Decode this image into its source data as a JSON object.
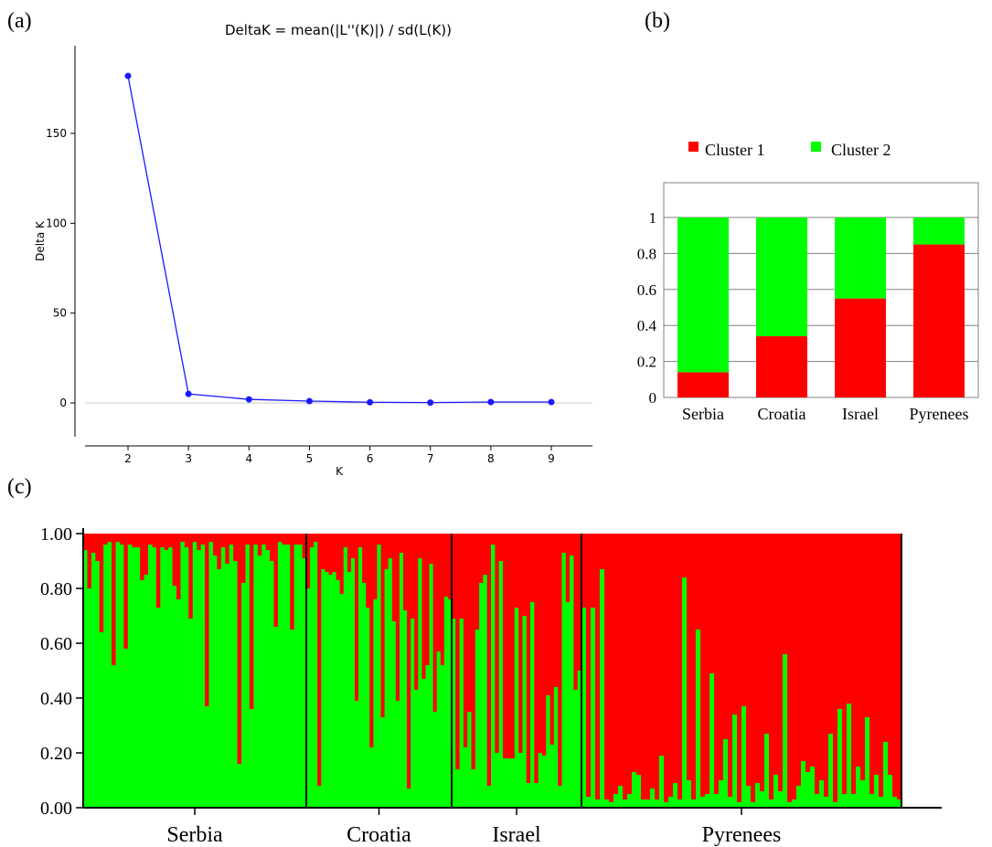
{
  "panel_labels": {
    "a": "(a)",
    "b": "(b)",
    "c": "(c)"
  },
  "colors": {
    "line": "#1a1aff",
    "cluster1": "#ff0000",
    "cluster2": "#00ff00",
    "axis": "#000000",
    "grid": "#808080"
  },
  "chart_data": [
    {
      "id": "a",
      "type": "line",
      "title": "DeltaK = mean(|L''(K)|) / sd(L(K))",
      "xlabel": "K",
      "ylabel": "Delta K",
      "x": [
        2,
        3,
        4,
        5,
        6,
        7,
        8,
        9
      ],
      "y": [
        182,
        5,
        2,
        1,
        0.4,
        0.2,
        0.5,
        0.5
      ],
      "xlim": [
        1.3,
        9.5
      ],
      "ylim": [
        -18,
        200
      ],
      "xticks": [
        "2",
        "3",
        "4",
        "5",
        "6",
        "7",
        "8",
        "9"
      ],
      "yticks": [
        "0",
        "50",
        "100",
        "150"
      ],
      "ytick_values": [
        0,
        50,
        100,
        150
      ],
      "zero_line": true
    },
    {
      "id": "b",
      "type": "bar",
      "stacked": true,
      "categories": [
        "Serbia",
        "Croatia",
        "Israel",
        "Pyrenees"
      ],
      "series": [
        {
          "name": "Cluster 1",
          "values": [
            0.14,
            0.34,
            0.55,
            0.85
          ]
        },
        {
          "name": "Cluster 2",
          "values": [
            0.86,
            0.66,
            0.45,
            0.15
          ]
        }
      ],
      "ylim": [
        0,
        1.2
      ],
      "yticks": [
        "0",
        "0.2",
        "0.4",
        "0.6",
        "0.8",
        "1"
      ],
      "ytick_values": [
        0,
        0.2,
        0.4,
        0.6,
        0.8,
        1.0
      ],
      "grid": true,
      "legend": "top"
    },
    {
      "id": "c",
      "type": "bar",
      "stacked": true,
      "ylim": [
        0,
        1
      ],
      "yticks": [
        "0.00",
        "0.20",
        "0.40",
        "0.60",
        "0.80",
        "1.00"
      ],
      "ytick_values": [
        0,
        0.2,
        0.4,
        0.6,
        0.8,
        1.0
      ],
      "groups": [
        {
          "name": "Serbia",
          "cluster2": [
            0.94,
            0.8,
            0.93,
            0.9,
            0.64,
            0.96,
            0.97,
            0.52,
            0.97,
            0.96,
            0.58,
            0.96,
            0.95,
            0.95,
            0.83,
            0.85,
            0.96,
            0.95,
            0.73,
            0.95,
            0.94,
            0.95,
            0.81,
            0.76,
            0.97,
            0.95,
            0.69,
            0.97,
            0.94,
            0.96,
            0.37,
            0.97,
            0.92,
            0.87,
            0.95,
            0.89,
            0.96,
            0.9,
            0.16,
            0.82,
            0.96,
            0.36,
            0.96,
            0.92,
            0.96,
            0.94,
            0.9,
            0.66,
            0.97,
            0.96,
            0.96,
            0.65,
            0.96,
            0.96,
            0.91
          ]
        },
        {
          "name": "Croatia",
          "cluster2": [
            0.8,
            0.95,
            0.97,
            0.08,
            0.87,
            0.86,
            0.85,
            0.86,
            0.83,
            0.78,
            0.95,
            0.86,
            0.91,
            0.39,
            0.95,
            0.82,
            0.73,
            0.22,
            0.76,
            0.96,
            0.33,
            0.87,
            0.91,
            0.68,
            0.39,
            0.93,
            0.72,
            0.07,
            0.69,
            0.43,
            0.91,
            0.47,
            0.52,
            0.89,
            0.35,
            0.57,
            0.52,
            0.77,
            0.76
          ]
        },
        {
          "name": "Israel",
          "cluster2": [
            0.69,
            0.14,
            0.69,
            0.22,
            0.35,
            0.14,
            0.65,
            0.82,
            0.85,
            0.08,
            0.96,
            0.2,
            0.9,
            0.18,
            0.18,
            0.18,
            0.73,
            0.2,
            0.7,
            0.09,
            0.75,
            0.09,
            0.2,
            0.19,
            0.41,
            0.23,
            0.44,
            0.08,
            0.93,
            0.75,
            0.92,
            0.43,
            0.5
          ]
        },
        {
          "name": "Pyrenees",
          "cluster2": [
            0.73,
            0.04,
            0.73,
            0.03,
            0.87,
            0.03,
            0.02,
            0.05,
            0.08,
            0.03,
            0.05,
            0.13,
            0.12,
            0.03,
            0.03,
            0.07,
            0.03,
            0.19,
            0.02,
            0.04,
            0.09,
            0.03,
            0.84,
            0.1,
            0.03,
            0.65,
            0.04,
            0.05,
            0.49,
            0.05,
            0.1,
            0.25,
            0.04,
            0.34,
            0.02,
            0.37,
            0.08,
            0.02,
            0.09,
            0.06,
            0.27,
            0.03,
            0.12,
            0.06,
            0.56,
            0.02,
            0.03,
            0.08,
            0.17,
            0.13,
            0.15,
            0.05,
            0.1,
            0.04,
            0.27,
            0.02,
            0.36,
            0.05,
            0.38,
            0.05,
            0.15,
            0.1,
            0.33,
            0.05,
            0.12,
            0.04,
            0.24,
            0.12,
            0.04,
            0.03
          ]
        }
      ]
    }
  ]
}
